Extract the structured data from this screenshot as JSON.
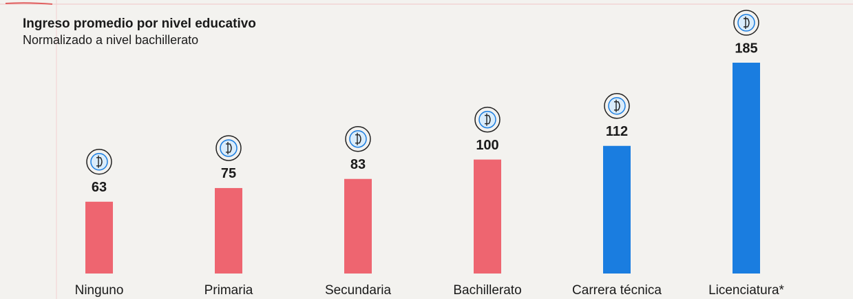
{
  "chart_data": {
    "type": "bar",
    "title": "Ingreso promedio por nivel educativo",
    "subtitle": "Normalizado a nivel bachillerato",
    "categories": [
      "Ninguno",
      "Primaria",
      "Secundaria",
      "Bachillerato",
      "Carrera técnica",
      "Licenciatura*"
    ],
    "values": [
      63,
      75,
      83,
      100,
      112,
      185
    ],
    "colors": [
      "#ee6570",
      "#ee6570",
      "#ee6570",
      "#ee6570",
      "#1a7de0",
      "#1a7de0"
    ]
  }
}
